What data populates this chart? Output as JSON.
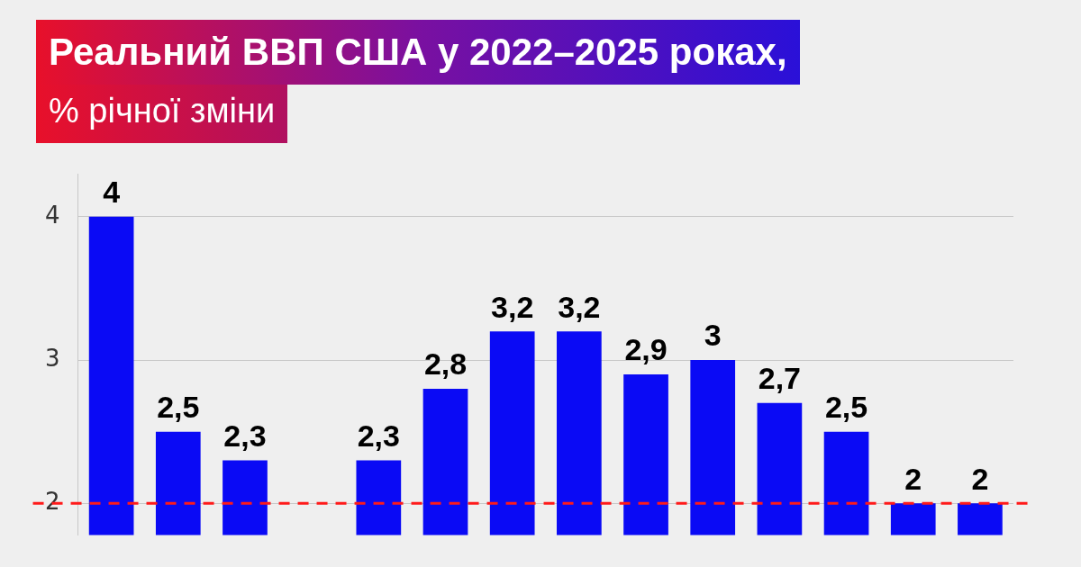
{
  "chart_data": {
    "type": "bar",
    "title": "Реальний ВВП США у 2022–2025 роках,",
    "subtitle": "% річної зміни",
    "categories": [
      null,
      null,
      null,
      null,
      null,
      null,
      null,
      null,
      null,
      null,
      null,
      null,
      null,
      null
    ],
    "values": [
      4,
      2.5,
      2.3,
      null,
      2.3,
      2.8,
      3.2,
      3.2,
      2.9,
      3,
      2.7,
      2.5,
      2,
      2
    ],
    "value_labels": [
      "4",
      "2,5",
      "2,3",
      null,
      "2,3",
      "2,8",
      "3,2",
      "3,2",
      "2,9",
      "3",
      "2,7",
      "2,5",
      "2",
      "2"
    ],
    "color": "#0a0af5",
    "ylim": [
      1.78,
      4.3
    ],
    "yticks": [
      2,
      3,
      4
    ],
    "grid": "y",
    "tick_labels": "y",
    "ref_lines": [
      {
        "axis": "y",
        "value": 2,
        "color": "#ff1a1a",
        "line_style": "dashed"
      }
    ]
  }
}
